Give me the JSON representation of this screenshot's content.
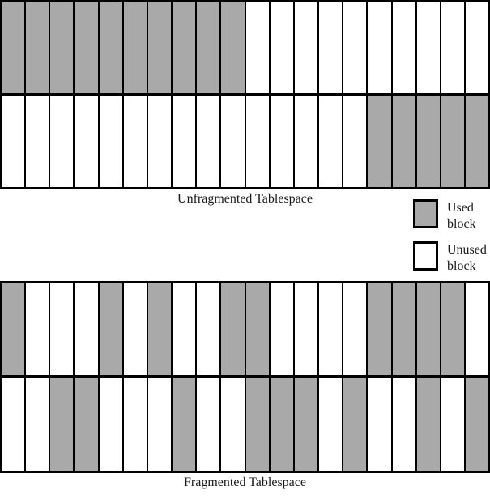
{
  "colors": {
    "used": "#a9a9a9",
    "unused": "#ffffff",
    "border": "#000000"
  },
  "legend": {
    "used_label": "Used block",
    "unused_label": "Unused block"
  },
  "unfragmented": {
    "label": "Unfragmented Tablespace",
    "blocks_per_row": 20,
    "rows": [
      [
        1,
        1,
        1,
        1,
        1,
        1,
        1,
        1,
        1,
        1,
        0,
        0,
        0,
        0,
        0,
        0,
        0,
        0,
        0,
        0
      ],
      [
        0,
        0,
        0,
        0,
        0,
        0,
        0,
        0,
        0,
        0,
        0,
        0,
        0,
        0,
        0,
        1,
        1,
        1,
        1,
        1
      ]
    ]
  },
  "fragmented": {
    "label": "Fragmented Tablespace",
    "blocks_per_row": 20,
    "rows": [
      [
        1,
        0,
        0,
        0,
        1,
        0,
        1,
        0,
        0,
        1,
        1,
        0,
        0,
        0,
        0,
        1,
        1,
        1,
        1,
        0
      ],
      [
        0,
        0,
        1,
        1,
        0,
        0,
        0,
        1,
        0,
        0,
        1,
        1,
        1,
        0,
        1,
        0,
        0,
        1,
        0,
        1
      ]
    ]
  }
}
